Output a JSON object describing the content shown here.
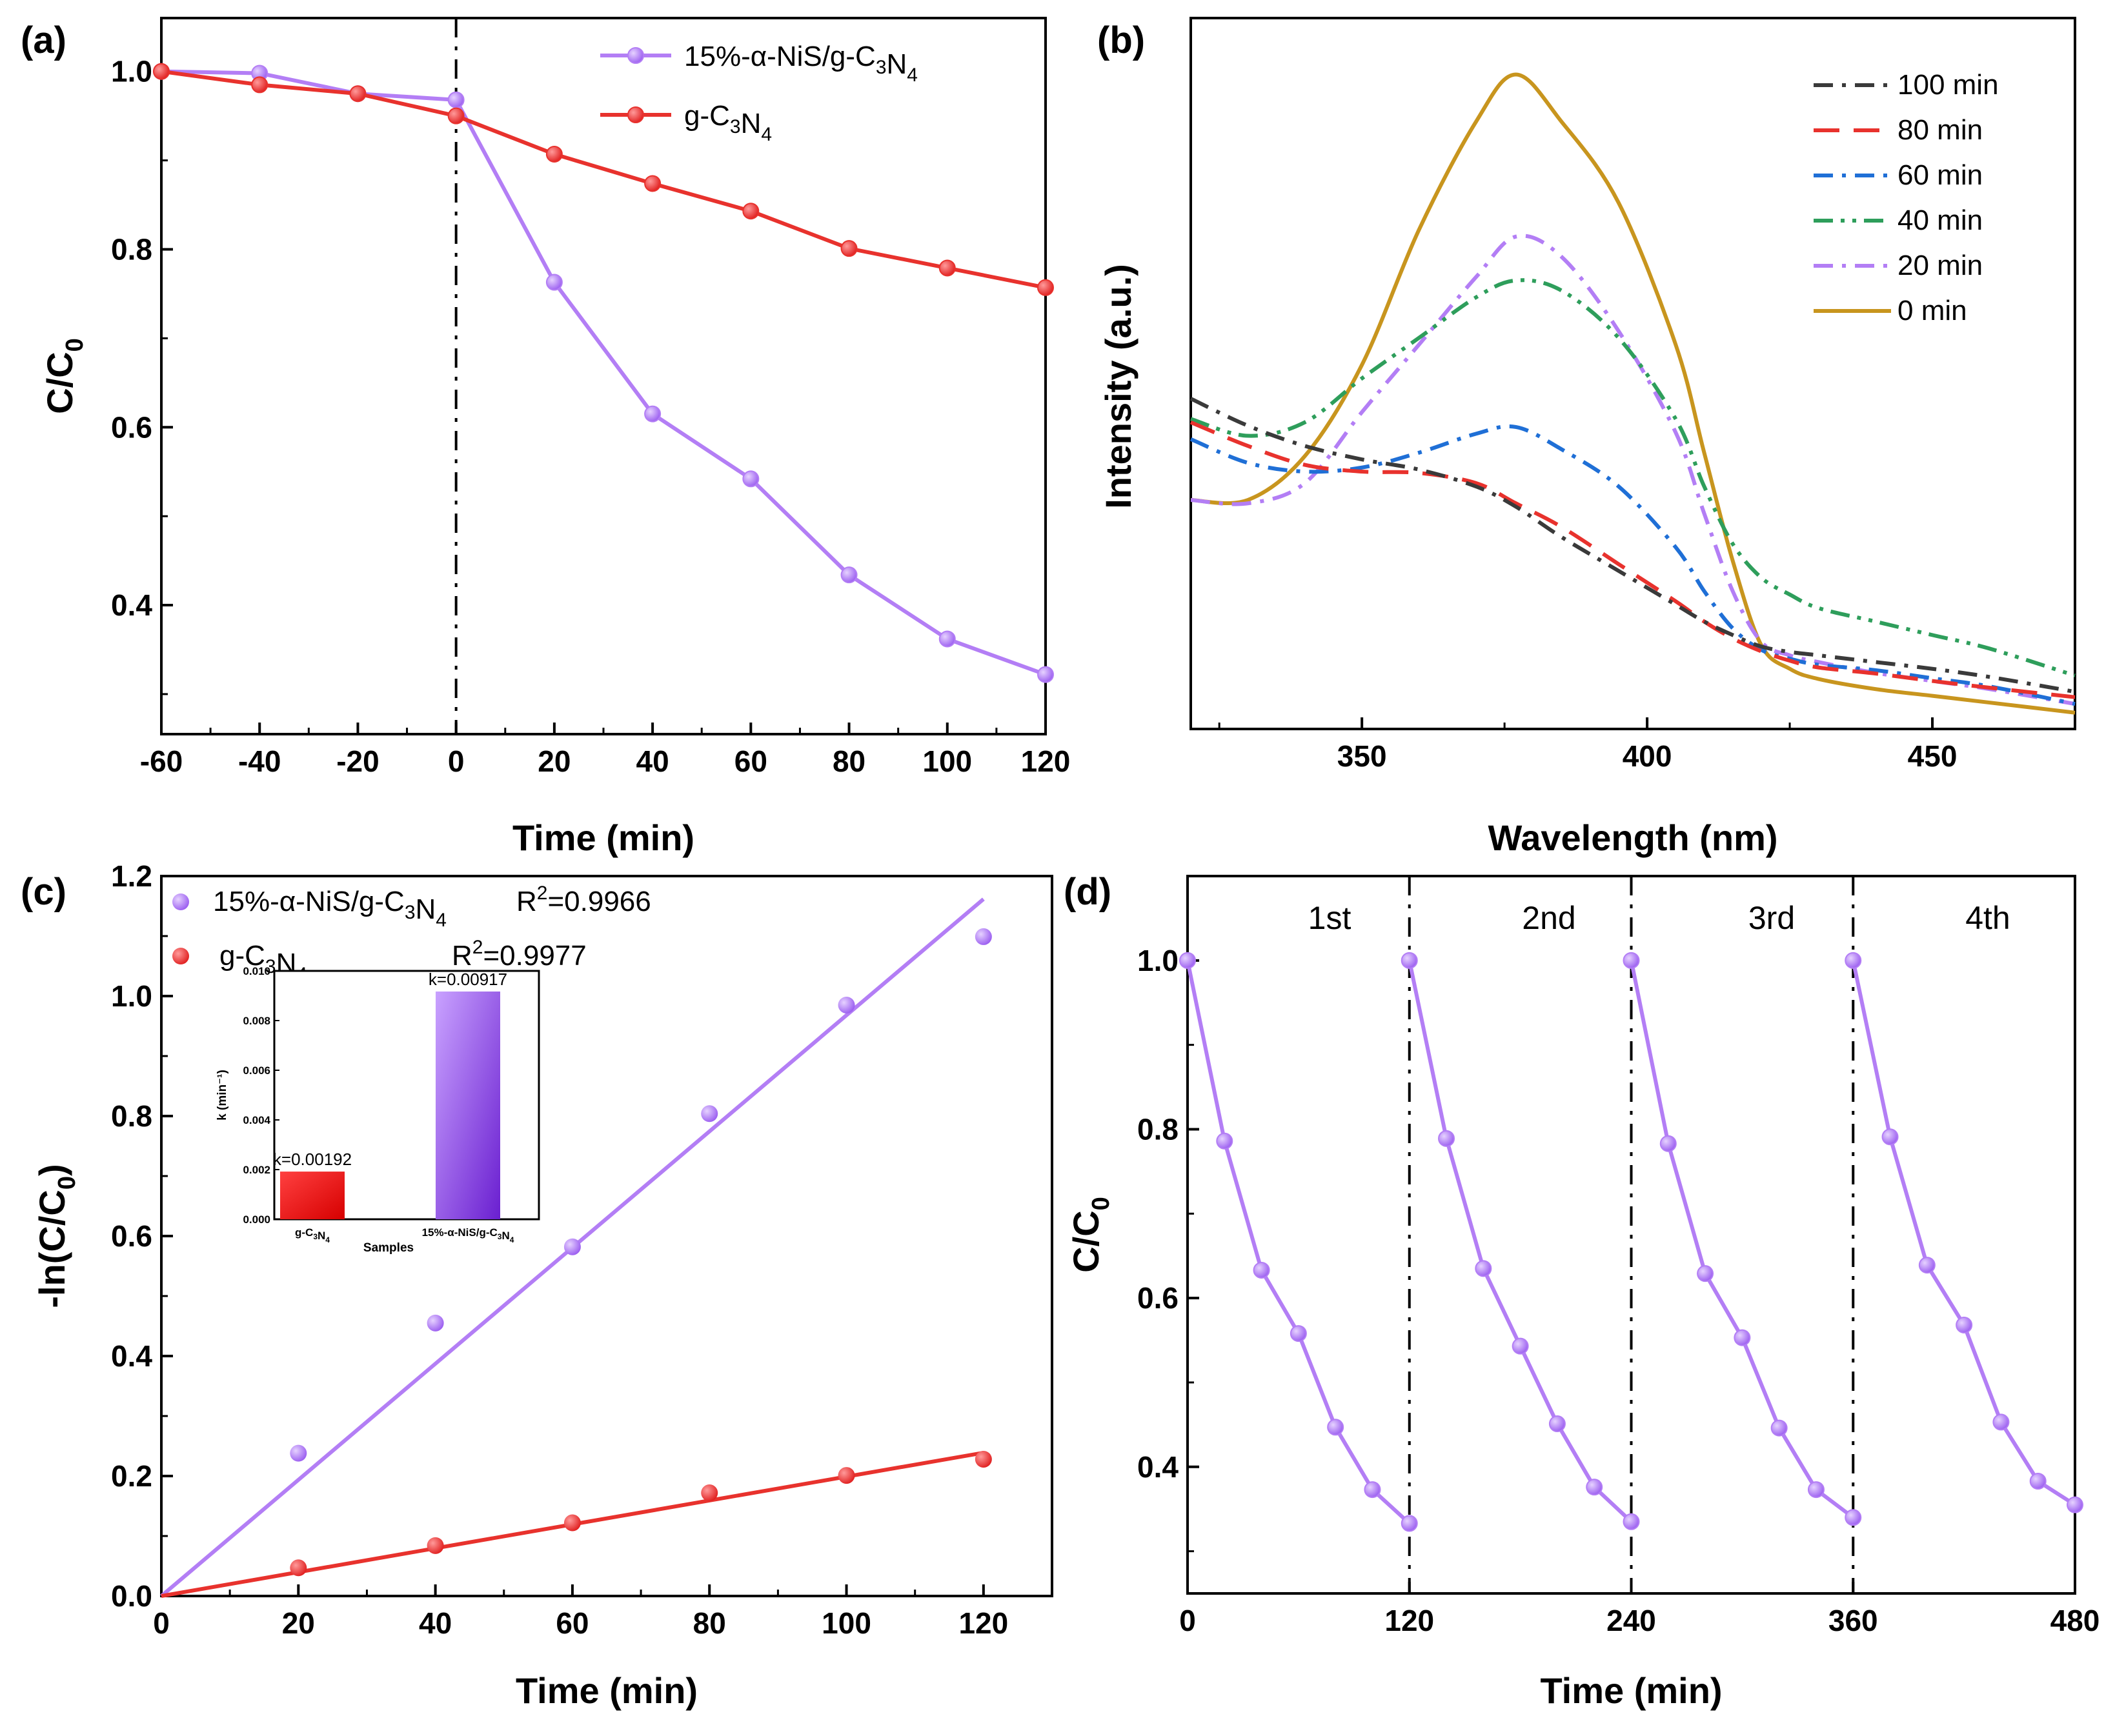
{
  "chart_data": [
    {
      "panel": "(a)",
      "type": "line",
      "xlabel": "Time (min)",
      "ylabel": "C/C0",
      "xlim": [
        -60,
        120
      ],
      "ylim": [
        0.255,
        1.06
      ],
      "xticks": [
        -60,
        -40,
        -20,
        0,
        20,
        40,
        60,
        80,
        100,
        120
      ],
      "xtick_labels": [
        "-60",
        "-40",
        "-20",
        "0",
        "20",
        "40",
        "60",
        "80",
        "100",
        "120"
      ],
      "yticks": [
        0.4,
        0.6,
        0.8,
        1.0
      ],
      "ytick_labels": [
        "0.4",
        "0.6",
        "0.8",
        "1.0"
      ],
      "x": [
        -60,
        -40,
        -20,
        0,
        20,
        40,
        60,
        80,
        100,
        120
      ],
      "series": [
        {
          "name": "15%-α-NiS/g-C3N4",
          "color": "#b37ef5",
          "values": [
            1.0,
            0.998,
            0.975,
            0.968,
            0.763,
            0.615,
            0.542,
            0.434,
            0.362,
            0.322
          ]
        },
        {
          "name": "g-C3N4",
          "color": "#e8322d",
          "values": [
            1.0,
            0.985,
            0.975,
            0.95,
            0.907,
            0.874,
            0.843,
            0.801,
            0.779,
            0.757
          ]
        }
      ],
      "vline_x": 0
    },
    {
      "panel": "(b)",
      "type": "line",
      "xlabel": "Wavelength (nm)",
      "ylabel": "Intensity (a.u.)",
      "xlim": [
        320,
        475
      ],
      "xticks": [
        350,
        400,
        450
      ],
      "xtick_labels": [
        "350",
        "400",
        "450"
      ],
      "x": [
        320,
        330,
        340,
        350,
        360,
        370,
        377,
        385,
        395,
        405,
        410,
        415,
        420,
        425,
        430,
        440,
        450,
        460,
        475
      ],
      "series": [
        {
          "name": "100 min",
          "color": "#3a3a3a",
          "dash": "dashdot",
          "label": "100 min",
          "values": [
            470,
            430,
            400,
            380,
            365,
            340,
            310,
            265,
            215,
            165,
            140,
            120,
            103,
            95,
            90,
            80,
            70,
            58,
            36
          ]
        },
        {
          "name": "80 min",
          "color": "#e8322d",
          "dash": "dash",
          "label": " 80 min",
          "values": [
            435,
            400,
            372,
            362,
            360,
            345,
            315,
            280,
            225,
            170,
            140,
            115,
            96,
            82,
            72,
            63,
            52,
            42,
            28
          ]
        },
        {
          "name": "60 min",
          "color": "#1f6fd6",
          "dash": "dashdot",
          "label": " 60 min",
          "values": [
            410,
            375,
            362,
            368,
            390,
            418,
            428,
            395,
            340,
            250,
            185,
            130,
            98,
            85,
            76,
            68,
            56,
            44,
            18
          ]
        },
        {
          "name": "40 min",
          "color": "#2e9e5b",
          "dash": "dashdotdot",
          "label": " 40 min",
          "values": [
            440,
            415,
            435,
            500,
            560,
            620,
            645,
            630,
            560,
            440,
            340,
            255,
            205,
            180,
            160,
            140,
            120,
            100,
            60
          ]
        },
        {
          "name": "20 min",
          "color": "#b37ef5",
          "dash": "dashdot",
          "label": " 20 min",
          "values": [
            320,
            315,
            345,
            450,
            550,
            650,
            710,
            680,
            570,
            420,
            300,
            185,
            110,
            90,
            80,
            64,
            52,
            40,
            18
          ]
        },
        {
          "name": "0 min",
          "color": "#c8951e",
          "dash": "solid",
          "label": "  0 min",
          "values": [
            320,
            320,
            385,
            520,
            720,
            880,
            950,
            880,
            760,
            550,
            390,
            230,
            105,
            70,
            55,
            40,
            30,
            20,
            5
          ]
        }
      ]
    },
    {
      "panel": "(c)",
      "type": "scatter",
      "xlabel": "Time (min)",
      "ylabel": "-ln(C/C0)",
      "xlim": [
        0,
        130
      ],
      "ylim": [
        0,
        1.2
      ],
      "xticks": [
        0,
        20,
        40,
        60,
        80,
        100,
        120
      ],
      "xtick_labels": [
        "0",
        "20",
        "40",
        "60",
        "80",
        "100",
        "120"
      ],
      "yticks": [
        0.0,
        0.2,
        0.4,
        0.6,
        0.8,
        1.0,
        1.2
      ],
      "ytick_labels": [
        "0.0",
        "0.2",
        "0.4",
        "0.6",
        "0.8",
        "1.0",
        "1.2"
      ],
      "x": [
        20,
        40,
        60,
        80,
        100,
        120
      ],
      "series": [
        {
          "name": "15%-α-NiS/g-C3N4",
          "r2": "R²=0.9966",
          "color": "#b37ef5",
          "values": [
            0.238,
            0.455,
            0.582,
            0.804,
            0.985,
            1.099
          ],
          "fit_slope": 0.00968
        },
        {
          "name": "g-C3N4",
          "r2": "R²=0.9977",
          "color": "#e8322d",
          "values": [
            0.047,
            0.084,
            0.122,
            0.172,
            0.201,
            0.228
          ],
          "fit_slope": 0.00199
        }
      ],
      "inset": {
        "type": "bar",
        "xlabel": "Samples",
        "ylabel": "k (min⁻¹)",
        "ylim": [
          0,
          0.01
        ],
        "yticks": [
          0.0,
          0.002,
          0.004,
          0.006,
          0.008,
          0.01
        ],
        "ytick_labels": [
          "0.000",
          "0.002",
          "0.004",
          "0.006",
          "0.008",
          "0.010"
        ],
        "categories": [
          "g-C3N4",
          "15%-α-NiS/g-C3N4"
        ],
        "values": [
          0.00192,
          0.00917
        ],
        "value_labels": [
          "k=0.00192",
          "k=0.00917"
        ],
        "colors": [
          "#ff1a1a",
          "#a066f0"
        ]
      }
    },
    {
      "panel": "(d)",
      "type": "line",
      "xlabel": "Time (min)",
      "ylabel": "C/C0",
      "xlim": [
        0,
        480
      ],
      "ylim": [
        0.25,
        1.1
      ],
      "xticks": [
        0,
        120,
        240,
        360,
        480
      ],
      "xtick_labels": [
        "0",
        "120",
        "240",
        "360",
        "480"
      ],
      "yticks": [
        0.4,
        0.6,
        0.8,
        1.0
      ],
      "ytick_labels": [
        "0.4",
        "0.6",
        "0.8",
        "1.0"
      ],
      "cycle_labels": [
        "1st",
        "2nd",
        "3rd",
        "4th"
      ],
      "vlines": [
        120,
        240,
        360
      ],
      "series": [
        {
          "name": "cycle 1",
          "color": "#b37ef5",
          "x": [
            0,
            20,
            40,
            60,
            80,
            100,
            120
          ],
          "values": [
            1.0,
            0.786,
            0.633,
            0.558,
            0.447,
            0.373,
            0.333
          ]
        },
        {
          "name": "cycle 2",
          "color": "#b37ef5",
          "x": [
            120,
            140,
            160,
            180,
            200,
            220,
            240
          ],
          "values": [
            1.0,
            0.789,
            0.635,
            0.543,
            0.451,
            0.376,
            0.335
          ]
        },
        {
          "name": "cycle 3",
          "color": "#b37ef5",
          "x": [
            240,
            260,
            280,
            300,
            320,
            340,
            360
          ],
          "values": [
            1.0,
            0.783,
            0.629,
            0.553,
            0.446,
            0.373,
            0.34
          ]
        },
        {
          "name": "cycle 4",
          "color": "#b37ef5",
          "x": [
            360,
            380,
            400,
            420,
            440,
            460,
            480
          ],
          "values": [
            1.0,
            0.791,
            0.639,
            0.568,
            0.453,
            0.383,
            0.355
          ]
        }
      ]
    }
  ]
}
